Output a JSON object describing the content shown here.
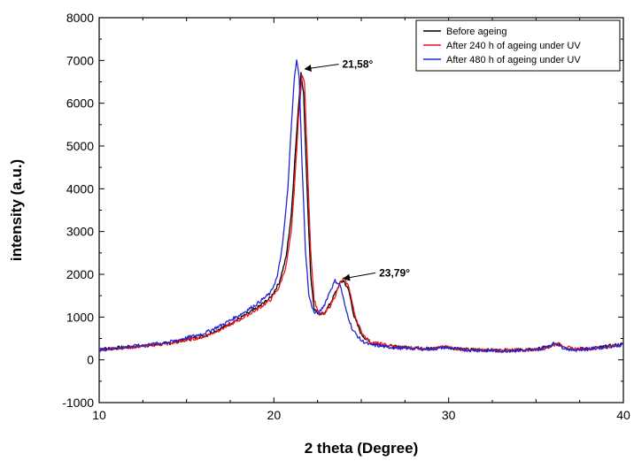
{
  "chart_data": {
    "type": "line",
    "xlabel": "2 theta (Degree)",
    "ylabel": "intensity (a.u.)",
    "xlim": [
      10,
      40
    ],
    "ylim": [
      -1000,
      8000
    ],
    "x_ticks": [
      10,
      20,
      30,
      40
    ],
    "y_ticks": [
      -1000,
      0,
      1000,
      2000,
      3000,
      4000,
      5000,
      6000,
      7000,
      8000
    ],
    "x_tick_labels": [
      "10",
      "20",
      "30",
      "40"
    ],
    "y_tick_labels": [
      "-1000",
      "0",
      "1000",
      "2000",
      "3000",
      "4000",
      "5000",
      "6000",
      "7000",
      "8000"
    ],
    "grid": false,
    "legend_position": "top-right",
    "series": [
      {
        "name": "Before ageing",
        "color": "#000000",
        "x": [
          10,
          12,
          14,
          16,
          17,
          18,
          19,
          19.8,
          20.3,
          20.7,
          21.0,
          21.2,
          21.4,
          21.55,
          21.7,
          21.9,
          22.1,
          22.3,
          22.6,
          22.9,
          23.2,
          23.5,
          23.8,
          24.0,
          24.3,
          24.6,
          25.0,
          25.5,
          27,
          29,
          29.8,
          31,
          33,
          35,
          35.8,
          36.2,
          36.6,
          37,
          38,
          39,
          40
        ],
        "y": [
          250,
          310,
          390,
          560,
          740,
          960,
          1200,
          1450,
          1800,
          2400,
          3400,
          4700,
          5900,
          6700,
          6200,
          4000,
          2000,
          1200,
          1050,
          1100,
          1300,
          1550,
          1800,
          1850,
          1600,
          1000,
          600,
          400,
          300,
          260,
          300,
          240,
          220,
          240,
          320,
          370,
          320,
          250,
          260,
          310,
          370
        ]
      },
      {
        "name": "After 240 h of ageing under UV",
        "color": "#e8141a",
        "x": [
          10,
          12,
          14,
          16,
          17,
          18,
          19,
          19.8,
          20.3,
          20.7,
          21.0,
          21.2,
          21.4,
          21.6,
          21.75,
          21.9,
          22.1,
          22.3,
          22.6,
          22.9,
          23.2,
          23.5,
          23.8,
          24.0,
          24.3,
          24.6,
          25.0,
          25.5,
          27,
          29,
          29.8,
          31,
          33,
          35,
          35.8,
          36.2,
          36.6,
          37,
          38,
          39,
          40
        ],
        "y": [
          240,
          300,
          380,
          540,
          720,
          930,
          1170,
          1400,
          1700,
          2200,
          3000,
          4200,
          5600,
          6650,
          6500,
          4800,
          2600,
          1400,
          1050,
          1080,
          1250,
          1500,
          1800,
          1900,
          1700,
          1100,
          650,
          420,
          300,
          260,
          300,
          240,
          220,
          240,
          300,
          380,
          330,
          260,
          260,
          300,
          360
        ]
      },
      {
        "name": "After 480 h of ageing under UV",
        "color": "#2424d6",
        "x": [
          10,
          12,
          14,
          16,
          17,
          18,
          19,
          19.8,
          20.2,
          20.5,
          20.8,
          21.0,
          21.15,
          21.3,
          21.45,
          21.6,
          21.8,
          22.0,
          22.3,
          22.6,
          22.9,
          23.2,
          23.5,
          23.8,
          24.1,
          24.5,
          25.0,
          25.5,
          27,
          29,
          29.8,
          31,
          33,
          35,
          35.8,
          36.1,
          36.5,
          37,
          38,
          39,
          40
        ],
        "y": [
          230,
          320,
          410,
          620,
          810,
          1040,
          1300,
          1560,
          1950,
          2700,
          4000,
          5500,
          6500,
          7000,
          6600,
          4700,
          2600,
          1500,
          1100,
          1100,
          1300,
          1600,
          1850,
          1750,
          1200,
          700,
          450,
          350,
          280,
          250,
          290,
          230,
          210,
          230,
          330,
          400,
          300,
          230,
          250,
          300,
          350
        ]
      }
    ],
    "annotations": [
      {
        "text": "21,58°",
        "x": 21.58,
        "y": 6800
      },
      {
        "text": "23,79°",
        "x": 23.79,
        "y": 1900
      }
    ]
  }
}
